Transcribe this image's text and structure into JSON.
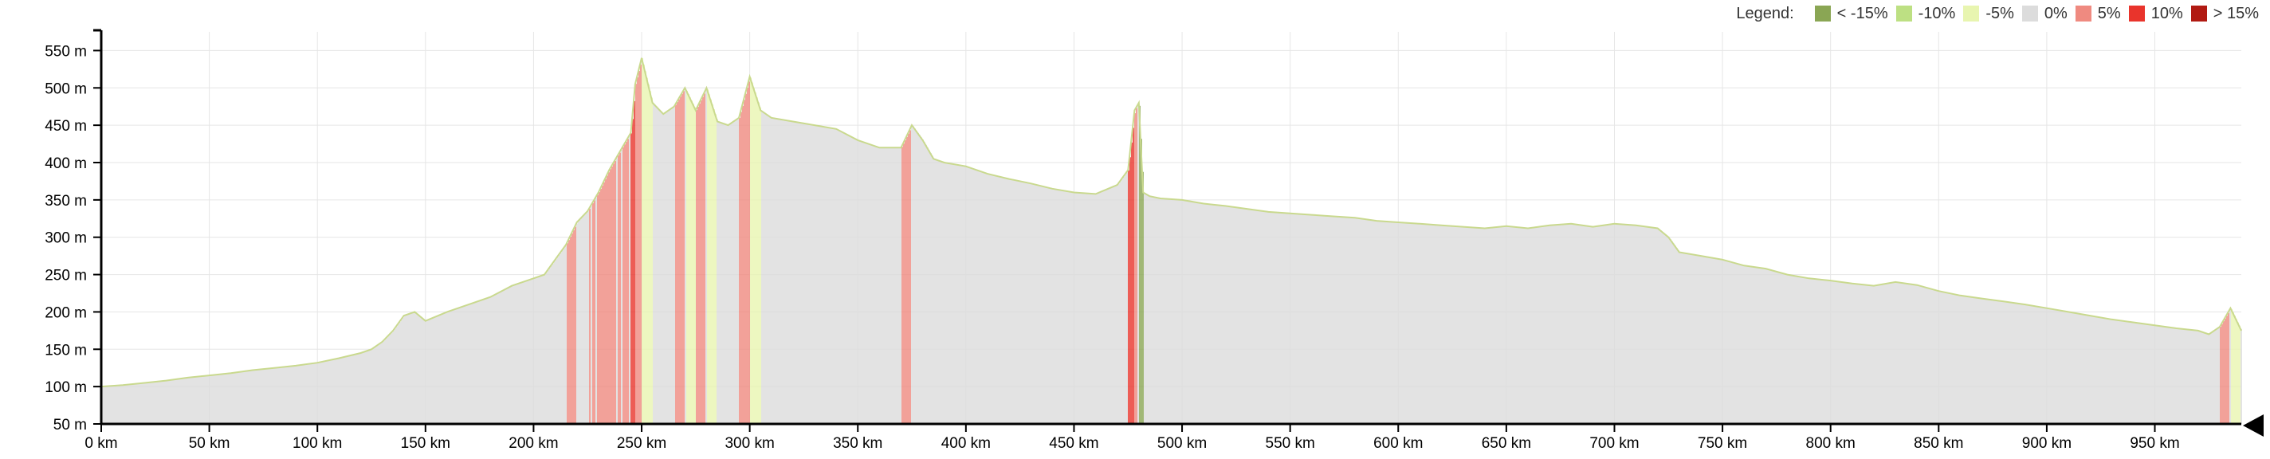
{
  "legend": {
    "title": "Legend:",
    "items": [
      {
        "label": "< -15%",
        "color": "#8aa654"
      },
      {
        "label": "-10%",
        "color": "#bde083"
      },
      {
        "label": "-5%",
        "color": "#e8f5b0"
      },
      {
        "label": "0%",
        "color": "#dcdcdc"
      },
      {
        "label": "5%",
        "color": "#ef8a80"
      },
      {
        "label": "10%",
        "color": "#e9342c"
      },
      {
        "label": "> 15%",
        "color": "#b11a12"
      }
    ]
  },
  "chart_data": {
    "type": "area",
    "title": "",
    "xlabel": "",
    "ylabel": "",
    "x_unit": "km",
    "y_unit": "m",
    "xlim": [
      0,
      990
    ],
    "ylim": [
      50,
      575
    ],
    "x_ticks": [
      "0 km",
      "50 km",
      "100 km",
      "150 km",
      "200 km",
      "250 km",
      "300 km",
      "350 km",
      "400 km",
      "450 km",
      "500 km",
      "550 km",
      "600 km",
      "650 km",
      "700 km",
      "750 km",
      "800 km",
      "850 km",
      "900 km",
      "950 km"
    ],
    "y_ticks": [
      "50 m",
      "100 m",
      "150 m",
      "200 m",
      "250 m",
      "300 m",
      "350 m",
      "400 m",
      "450 m",
      "500 m",
      "550 m"
    ],
    "grid": true,
    "legend_position": "top-right",
    "series": [
      {
        "x": [
          0,
          10,
          20,
          30,
          40,
          50,
          60,
          70,
          80,
          90,
          100,
          110,
          120,
          125,
          130,
          135,
          140,
          145,
          150,
          160,
          170,
          180,
          190,
          200,
          205,
          210,
          215,
          220,
          225,
          230,
          235,
          240,
          245,
          247,
          250,
          255,
          260,
          265,
          270,
          275,
          280,
          285,
          290,
          295,
          300,
          305,
          310,
          320,
          330,
          340,
          350,
          360,
          370,
          375,
          380,
          385,
          390,
          400,
          410,
          420,
          430,
          440,
          450,
          460,
          470,
          475,
          478,
          480,
          482,
          485,
          490,
          500,
          510,
          520,
          530,
          540,
          550,
          560,
          570,
          580,
          590,
          600,
          610,
          620,
          630,
          640,
          650,
          660,
          670,
          680,
          690,
          700,
          710,
          720,
          725,
          730,
          740,
          750,
          760,
          770,
          780,
          790,
          800,
          810,
          820,
          830,
          840,
          850,
          860,
          870,
          880,
          890,
          900,
          910,
          920,
          930,
          940,
          950,
          960,
          970,
          975,
          980,
          985,
          990
        ],
        "y": [
          100,
          102,
          105,
          108,
          112,
          115,
          118,
          122,
          125,
          128,
          132,
          138,
          145,
          150,
          160,
          175,
          195,
          200,
          188,
          200,
          210,
          220,
          235,
          245,
          250,
          270,
          290,
          320,
          335,
          360,
          390,
          415,
          440,
          505,
          540,
          480,
          465,
          475,
          500,
          470,
          500,
          455,
          450,
          460,
          515,
          470,
          460,
          455,
          450,
          445,
          430,
          420,
          420,
          450,
          430,
          405,
          400,
          395,
          385,
          378,
          372,
          365,
          360,
          358,
          370,
          390,
          470,
          480,
          360,
          355,
          352,
          350,
          345,
          342,
          338,
          334,
          332,
          330,
          328,
          326,
          322,
          320,
          318,
          316,
          314,
          312,
          315,
          312,
          316,
          318,
          314,
          318,
          316,
          312,
          300,
          280,
          275,
          270,
          262,
          258,
          250,
          245,
          242,
          238,
          235,
          240,
          236,
          228,
          222,
          218,
          214,
          210,
          205,
          200,
          195,
          190,
          186,
          182,
          178,
          175,
          170,
          180,
          205,
          175
        ]
      }
    ]
  }
}
